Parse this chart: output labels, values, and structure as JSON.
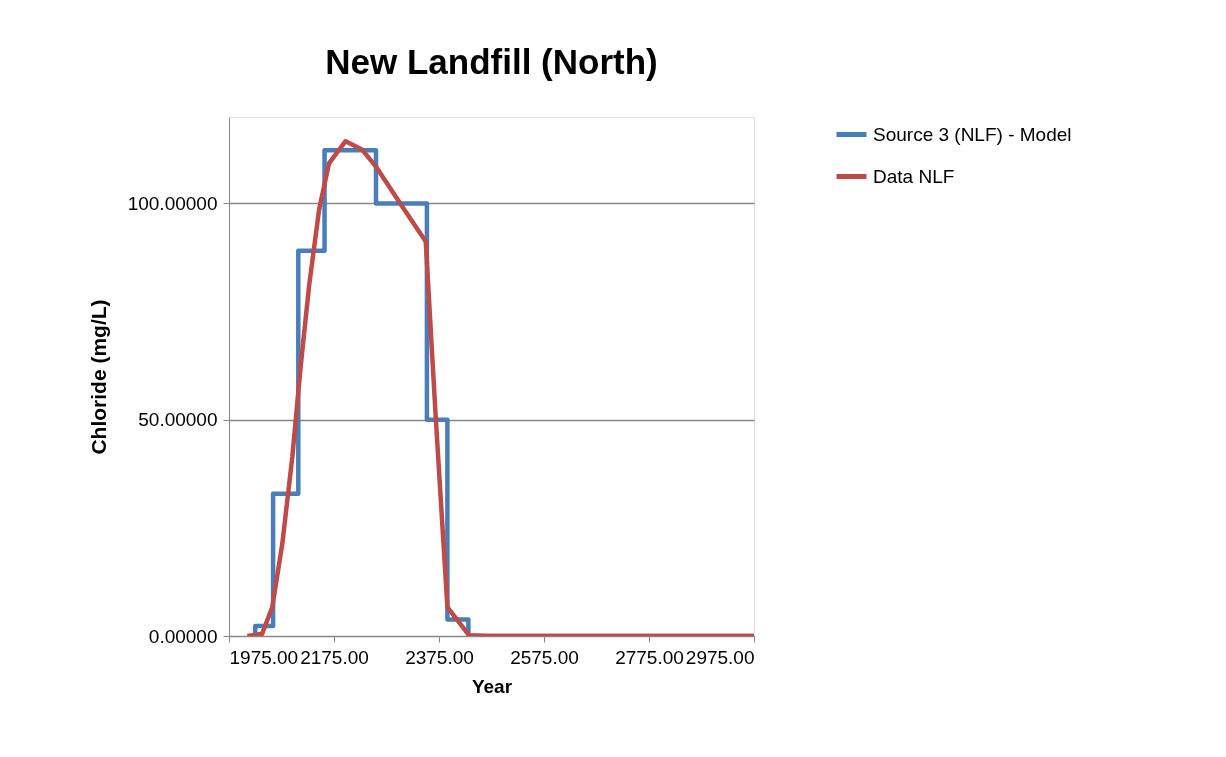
{
  "chart_data": {
    "type": "line",
    "title": "New Landfill (North)",
    "xlabel": "Year",
    "ylabel": "Chloride (mg/L)",
    "xlim": [
      1975,
      2975
    ],
    "xticks": [
      {
        "value": 1975,
        "label": "1975.00"
      },
      {
        "value": 2175,
        "label": "2175.00"
      },
      {
        "value": 2375,
        "label": "2375.00"
      },
      {
        "value": 2575,
        "label": "2575.00"
      },
      {
        "value": 2775,
        "label": "2775.00"
      },
      {
        "value": 2975,
        "label": "2975.00"
      }
    ],
    "ylim": [
      0,
      120
    ],
    "yticks": [
      {
        "value": 0,
        "label": "0.00000"
      },
      {
        "value": 50,
        "label": "50.00000"
      },
      {
        "value": 100,
        "label": "100.00000"
      }
    ],
    "grid": "y",
    "legend": "right",
    "line_style": "solid",
    "marker": "none",
    "series": [
      {
        "name": "Source 3 (NLF) - Model",
        "color": "#4a7ebb",
        "x": [
          2025,
          2025,
          2059,
          2059,
          2107,
          2107,
          2157,
          2157,
          2255,
          2255,
          2352,
          2352,
          2391,
          2391,
          2431,
          2431,
          2975
        ],
        "values": [
          0,
          2.3,
          2.3,
          32.9,
          32.9,
          89.1,
          89.1,
          112.3,
          112.3,
          100,
          100,
          50,
          50,
          3.8,
          3.8,
          0,
          0
        ]
      },
      {
        "name": "Data NLF",
        "color": "#be4b48",
        "x": [
          2010,
          2038,
          2057.5,
          2076.6,
          2095.6,
          2111.5,
          2127.4,
          2146.5,
          2165.5,
          2197,
          2229,
          2254.5,
          2305,
          2349.7,
          2368.7,
          2391,
          2432,
          2470,
          2975
        ],
        "values": [
          0,
          0.5,
          6.7,
          21.4,
          41.4,
          62.3,
          80.8,
          98.5,
          109.3,
          114.4,
          112.4,
          108.6,
          99.3,
          91.2,
          50.7,
          6.7,
          0.2,
          0,
          0
        ]
      }
    ]
  }
}
